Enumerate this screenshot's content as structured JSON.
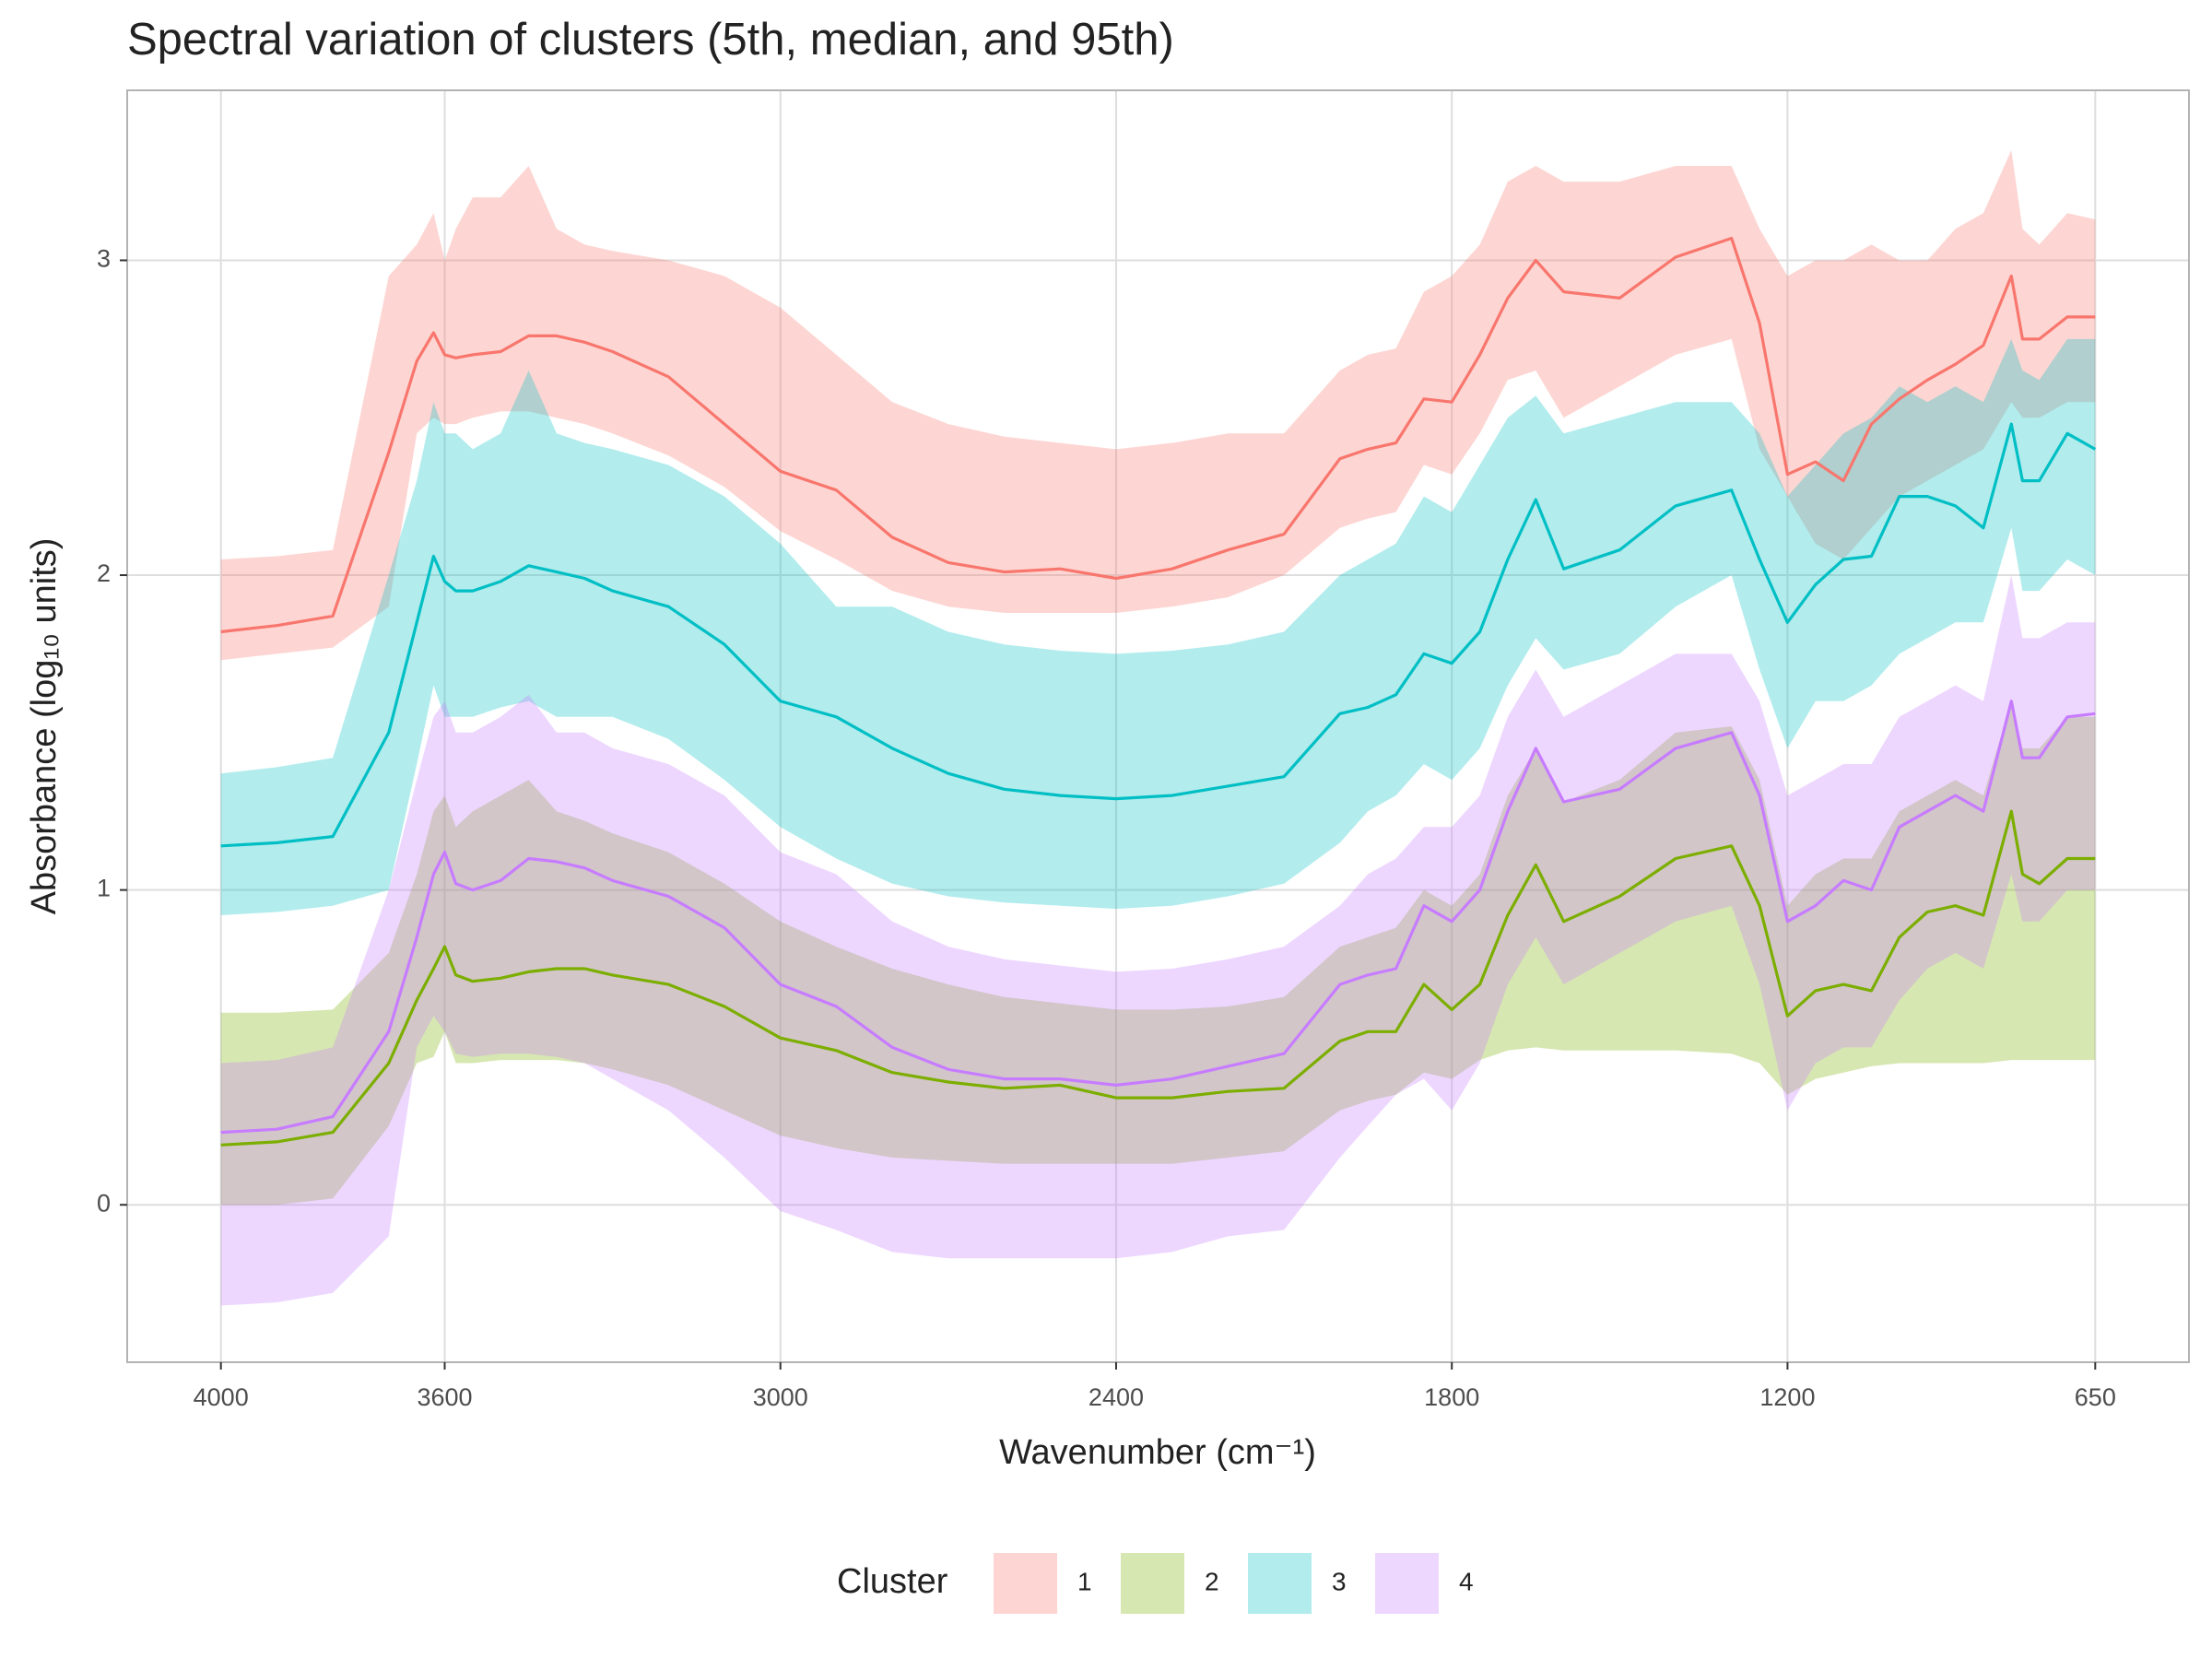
{
  "chart_data": {
    "type": "ribbon_line",
    "title": "Spectral variation of clusters (5th, median, and 95th)",
    "x_label": "Wavenumber (cm⁻¹)",
    "y_label": "Absorbance (log₁₀ units)",
    "legend_title": "Cluster",
    "legend_position": "bottom",
    "grid": true,
    "ribbon_opacity": 0.3,
    "xlim": [
      4167.5,
      482.5
    ],
    "ylim": [
      -0.5,
      3.54
    ],
    "xticks": [
      4000,
      3600,
      3000,
      2400,
      1800,
      1200,
      650
    ],
    "yticks": [
      0,
      1,
      2,
      3
    ],
    "x": [
      4000,
      3900,
      3800,
      3700,
      3650,
      3620,
      3600,
      3580,
      3550,
      3500,
      3450,
      3400,
      3350,
      3300,
      3200,
      3100,
      3000,
      2900,
      2800,
      2700,
      2600,
      2500,
      2400,
      2300,
      2200,
      2100,
      2000,
      1950,
      1900,
      1850,
      1800,
      1750,
      1700,
      1650,
      1600,
      1500,
      1400,
      1300,
      1250,
      1200,
      1150,
      1100,
      1050,
      1000,
      950,
      900,
      850,
      800,
      780,
      750,
      700,
      650
    ],
    "series": [
      {
        "name": "1",
        "color": "#F8766D",
        "values": [
          1.82,
          1.84,
          1.87,
          2.39,
          2.68,
          2.77,
          2.7,
          2.69,
          2.7,
          2.71,
          2.76,
          2.76,
          2.74,
          2.71,
          2.63,
          2.48,
          2.33,
          2.27,
          2.12,
          2.04,
          2.01,
          2.02,
          1.99,
          2.02,
          2.08,
          2.13,
          2.37,
          2.4,
          2.42,
          2.56,
          2.55,
          2.7,
          2.88,
          3.0,
          2.9,
          2.88,
          3.01,
          3.07,
          2.8,
          2.32,
          2.36,
          2.3,
          2.48,
          2.56,
          2.62,
          2.67,
          2.73,
          2.95,
          2.75,
          2.75,
          2.82,
          2.82
        ],
        "upper": [
          2.05,
          2.06,
          2.08,
          2.95,
          3.05,
          3.15,
          3.0,
          3.1,
          3.2,
          3.2,
          3.3,
          3.1,
          3.05,
          3.03,
          3.0,
          2.95,
          2.85,
          2.7,
          2.55,
          2.48,
          2.44,
          2.42,
          2.4,
          2.42,
          2.45,
          2.45,
          2.65,
          2.7,
          2.72,
          2.9,
          2.95,
          3.05,
          3.25,
          3.3,
          3.25,
          3.25,
          3.3,
          3.3,
          3.1,
          2.95,
          3.0,
          3.0,
          3.05,
          3.0,
          3.0,
          3.1,
          3.15,
          3.35,
          3.1,
          3.05,
          3.15,
          3.13
        ],
        "lower": [
          1.73,
          1.75,
          1.77,
          1.9,
          2.45,
          2.5,
          2.48,
          2.48,
          2.5,
          2.52,
          2.52,
          2.5,
          2.48,
          2.45,
          2.38,
          2.28,
          2.14,
          2.05,
          1.95,
          1.9,
          1.88,
          1.88,
          1.88,
          1.9,
          1.93,
          2.0,
          2.15,
          2.18,
          2.2,
          2.35,
          2.32,
          2.45,
          2.62,
          2.65,
          2.5,
          2.6,
          2.7,
          2.75,
          2.4,
          2.25,
          2.1,
          2.05,
          2.15,
          2.25,
          2.3,
          2.35,
          2.4,
          2.55,
          2.5,
          2.5,
          2.55,
          2.55
        ]
      },
      {
        "name": "2",
        "color": "#7CAE00",
        "values": [
          0.19,
          0.2,
          0.23,
          0.45,
          0.65,
          0.75,
          0.82,
          0.73,
          0.71,
          0.72,
          0.74,
          0.75,
          0.75,
          0.73,
          0.7,
          0.63,
          0.53,
          0.49,
          0.42,
          0.39,
          0.37,
          0.38,
          0.34,
          0.34,
          0.36,
          0.37,
          0.52,
          0.55,
          0.55,
          0.7,
          0.62,
          0.7,
          0.92,
          1.08,
          0.9,
          0.98,
          1.1,
          1.14,
          0.95,
          0.6,
          0.68,
          0.7,
          0.68,
          0.85,
          0.93,
          0.95,
          0.92,
          1.25,
          1.05,
          1.02,
          1.1,
          1.1
        ],
        "upper": [
          0.61,
          0.61,
          0.62,
          0.8,
          1.05,
          1.25,
          1.3,
          1.2,
          1.25,
          1.3,
          1.35,
          1.25,
          1.22,
          1.18,
          1.12,
          1.02,
          0.9,
          0.82,
          0.75,
          0.7,
          0.66,
          0.64,
          0.62,
          0.62,
          0.63,
          0.66,
          0.82,
          0.85,
          0.88,
          1.0,
          0.95,
          1.05,
          1.3,
          1.45,
          1.28,
          1.35,
          1.5,
          1.52,
          1.35,
          0.95,
          1.05,
          1.1,
          1.1,
          1.25,
          1.3,
          1.35,
          1.3,
          1.6,
          1.45,
          1.45,
          1.55,
          1.55
        ],
        "lower": [
          0.0,
          0.0,
          0.02,
          0.25,
          0.45,
          0.47,
          0.55,
          0.45,
          0.45,
          0.46,
          0.46,
          0.46,
          0.45,
          0.43,
          0.38,
          0.3,
          0.22,
          0.18,
          0.15,
          0.14,
          0.13,
          0.13,
          0.13,
          0.13,
          0.15,
          0.17,
          0.3,
          0.33,
          0.35,
          0.42,
          0.4,
          0.46,
          0.49,
          0.5,
          0.49,
          0.49,
          0.49,
          0.48,
          0.45,
          0.35,
          0.4,
          0.42,
          0.44,
          0.45,
          0.45,
          0.45,
          0.45,
          0.46,
          0.46,
          0.46,
          0.46,
          0.46
        ]
      },
      {
        "name": "3",
        "color": "#00BFC4",
        "values": [
          1.14,
          1.15,
          1.17,
          1.5,
          1.85,
          2.06,
          1.98,
          1.95,
          1.95,
          1.98,
          2.03,
          2.01,
          1.99,
          1.95,
          1.9,
          1.78,
          1.6,
          1.55,
          1.45,
          1.37,
          1.32,
          1.3,
          1.29,
          1.3,
          1.33,
          1.36,
          1.56,
          1.58,
          1.62,
          1.75,
          1.72,
          1.82,
          2.05,
          2.24,
          2.02,
          2.08,
          2.22,
          2.27,
          2.05,
          1.85,
          1.97,
          2.05,
          2.06,
          2.25,
          2.25,
          2.22,
          2.15,
          2.48,
          2.3,
          2.3,
          2.45,
          2.4
        ],
        "upper": [
          1.37,
          1.39,
          1.42,
          2.0,
          2.3,
          2.55,
          2.45,
          2.45,
          2.4,
          2.45,
          2.65,
          2.45,
          2.42,
          2.4,
          2.35,
          2.25,
          2.1,
          1.9,
          1.9,
          1.82,
          1.78,
          1.76,
          1.75,
          1.76,
          1.78,
          1.82,
          2.0,
          2.05,
          2.1,
          2.25,
          2.2,
          2.35,
          2.5,
          2.57,
          2.45,
          2.5,
          2.55,
          2.55,
          2.45,
          2.25,
          2.35,
          2.45,
          2.5,
          2.6,
          2.55,
          2.6,
          2.55,
          2.75,
          2.65,
          2.62,
          2.75,
          2.75
        ],
        "lower": [
          0.92,
          0.93,
          0.95,
          1.0,
          1.4,
          1.65,
          1.55,
          1.55,
          1.55,
          1.58,
          1.6,
          1.55,
          1.55,
          1.55,
          1.48,
          1.35,
          1.2,
          1.1,
          1.02,
          0.98,
          0.96,
          0.95,
          0.94,
          0.95,
          0.98,
          1.02,
          1.15,
          1.25,
          1.3,
          1.4,
          1.35,
          1.45,
          1.65,
          1.8,
          1.7,
          1.75,
          1.9,
          2.0,
          1.7,
          1.45,
          1.6,
          1.6,
          1.65,
          1.75,
          1.8,
          1.85,
          1.85,
          2.15,
          1.95,
          1.95,
          2.05,
          2.0
        ]
      },
      {
        "name": "4",
        "color": "#C77CFF",
        "values": [
          0.23,
          0.24,
          0.28,
          0.55,
          0.85,
          1.05,
          1.12,
          1.02,
          1.0,
          1.03,
          1.1,
          1.09,
          1.07,
          1.03,
          0.98,
          0.88,
          0.7,
          0.63,
          0.5,
          0.43,
          0.4,
          0.4,
          0.38,
          0.4,
          0.44,
          0.48,
          0.7,
          0.73,
          0.75,
          0.95,
          0.9,
          1.0,
          1.25,
          1.45,
          1.28,
          1.32,
          1.45,
          1.5,
          1.3,
          0.9,
          0.95,
          1.03,
          1.0,
          1.2,
          1.25,
          1.3,
          1.25,
          1.6,
          1.42,
          1.42,
          1.55,
          1.56
        ],
        "upper": [
          0.45,
          0.46,
          0.5,
          1.0,
          1.35,
          1.55,
          1.6,
          1.5,
          1.5,
          1.55,
          1.62,
          1.5,
          1.5,
          1.45,
          1.4,
          1.3,
          1.12,
          1.05,
          0.9,
          0.82,
          0.78,
          0.76,
          0.74,
          0.75,
          0.78,
          0.82,
          0.95,
          1.05,
          1.1,
          1.2,
          1.2,
          1.3,
          1.55,
          1.7,
          1.55,
          1.65,
          1.75,
          1.75,
          1.6,
          1.3,
          1.35,
          1.4,
          1.4,
          1.55,
          1.6,
          1.65,
          1.6,
          2.0,
          1.8,
          1.8,
          1.85,
          1.85
        ],
        "lower": [
          -0.32,
          -0.31,
          -0.28,
          -0.1,
          0.5,
          0.6,
          0.55,
          0.48,
          0.47,
          0.48,
          0.48,
          0.47,
          0.45,
          0.4,
          0.3,
          0.15,
          -0.02,
          -0.08,
          -0.15,
          -0.17,
          -0.17,
          -0.17,
          -0.17,
          -0.15,
          -0.1,
          -0.08,
          0.15,
          0.25,
          0.35,
          0.4,
          0.3,
          0.45,
          0.7,
          0.85,
          0.7,
          0.8,
          0.9,
          0.95,
          0.7,
          0.3,
          0.45,
          0.5,
          0.5,
          0.65,
          0.75,
          0.8,
          0.75,
          1.05,
          0.9,
          0.9,
          1.0,
          1.0
        ]
      }
    ]
  }
}
